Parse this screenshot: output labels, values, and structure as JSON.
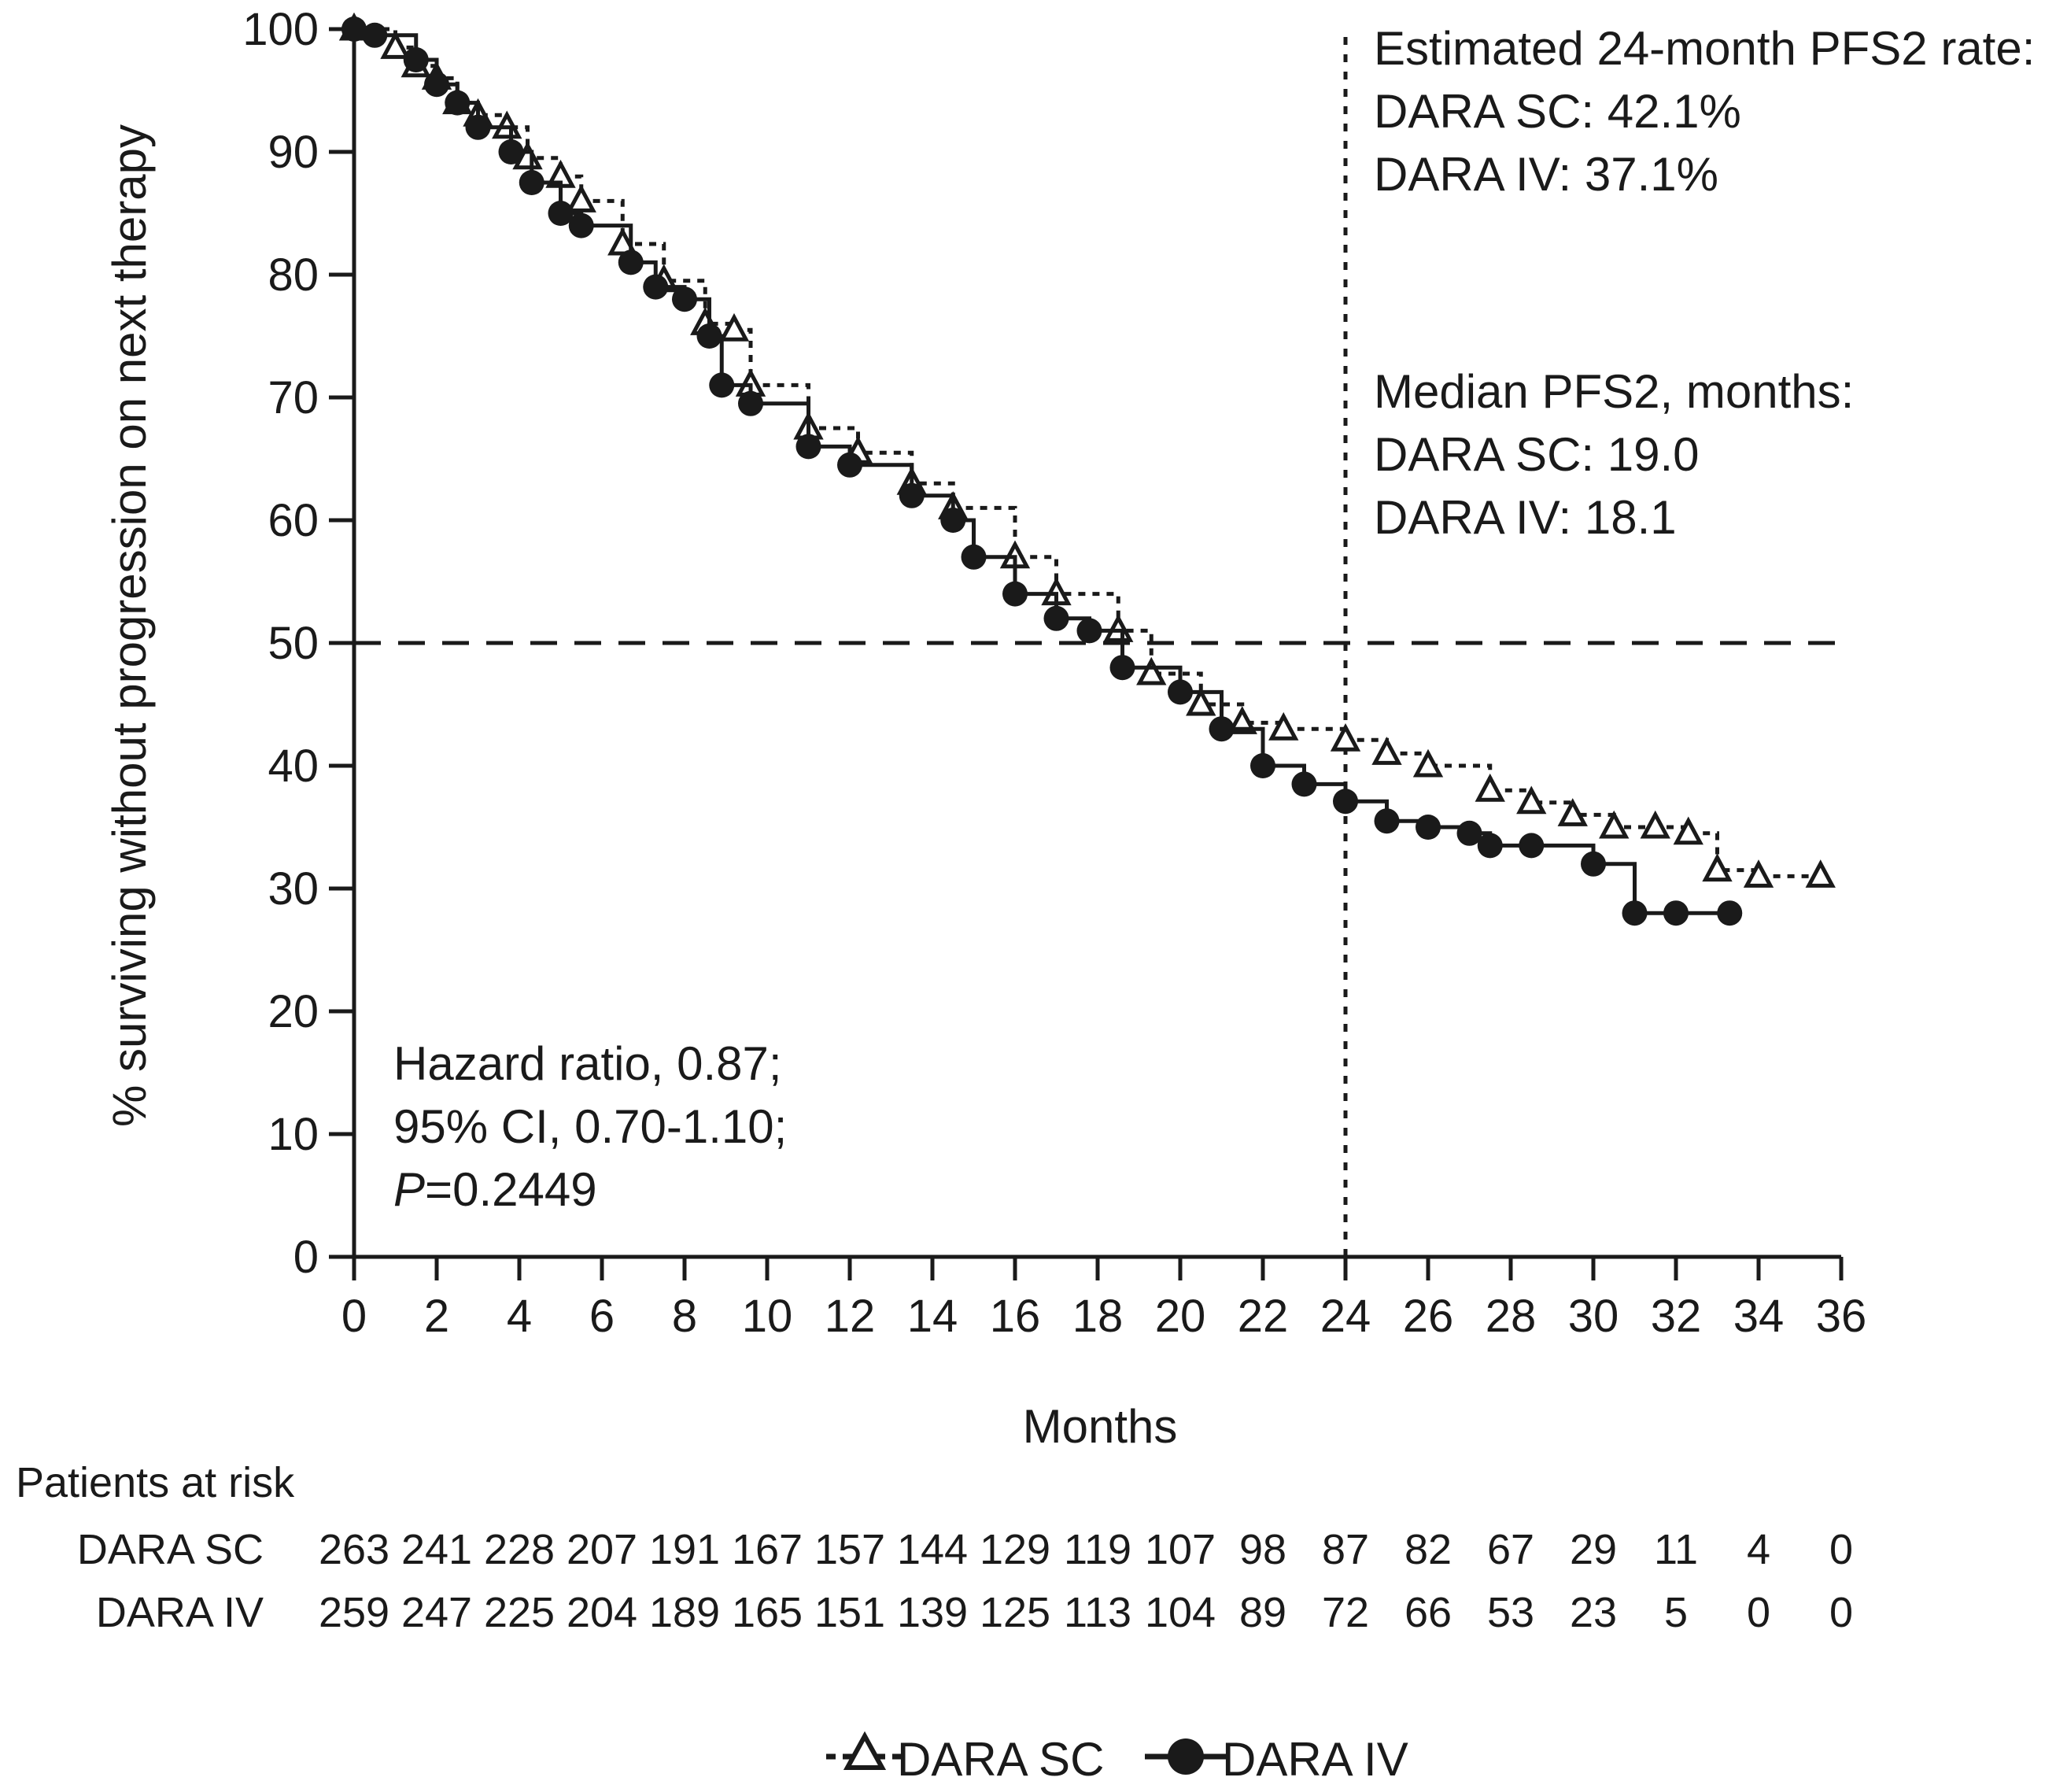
{
  "chart_data": {
    "type": "line",
    "subtype": "kaplan-meier",
    "xlabel": "Months",
    "ylabel": "% surviving without progression on next therapy",
    "xlim": [
      0,
      36
    ],
    "ylim": [
      0,
      100
    ],
    "xticks": [
      0,
      2,
      4,
      6,
      8,
      10,
      12,
      14,
      16,
      18,
      20,
      22,
      24,
      26,
      28,
      30,
      32,
      34,
      36
    ],
    "yticks": [
      0,
      10,
      20,
      30,
      40,
      50,
      60,
      70,
      80,
      90,
      100
    ],
    "grid": false,
    "reference_lines": {
      "horizontal_y": 50,
      "vertical_x": 24
    },
    "series": [
      {
        "name": "DARA SC",
        "marker": "triangle-open",
        "line_style": "dotted",
        "color": "#1a1a1a",
        "x": [
          0,
          1,
          1.5,
          2,
          2.5,
          3,
          3.7,
          4.2,
          5,
          5.5,
          6.5,
          7.5,
          8.5,
          9.2,
          9.6,
          11,
          12.2,
          13.5,
          14.5,
          16,
          17,
          18.5,
          19.3,
          20.5,
          21.5,
          22.5,
          24,
          25,
          26,
          27.5,
          28.5,
          29.5,
          30.5,
          31.5,
          32.3,
          33,
          34,
          35.5
        ],
        "y": [
          100,
          98.5,
          97,
          96,
          94,
          93,
          92,
          89.5,
          88,
          86,
          82.5,
          79.5,
          76,
          75.5,
          71,
          67.5,
          65.5,
          63,
          61,
          57,
          54,
          51,
          47.5,
          45,
          43.5,
          43,
          42.1,
          41,
          40,
          38,
          37,
          36,
          35,
          35,
          34.5,
          31.5,
          31,
          31
        ]
      },
      {
        "name": "DARA IV",
        "marker": "circle-filled",
        "line_style": "solid",
        "color": "#1a1a1a",
        "x": [
          0,
          0.5,
          1.5,
          2,
          2.5,
          3,
          3.8,
          4.3,
          5,
          5.5,
          6.7,
          7.3,
          8,
          8.6,
          8.9,
          9.6,
          11,
          12,
          13.5,
          14.5,
          15,
          16,
          17,
          17.8,
          18.6,
          20,
          21,
          22,
          23,
          24,
          25,
          26,
          27,
          27.5,
          28.5,
          30,
          31,
          32,
          33.3
        ],
        "y": [
          100,
          99.5,
          97.5,
          95.5,
          94,
          92,
          90,
          87.5,
          85,
          84,
          81,
          79,
          78,
          75,
          71,
          69.5,
          66,
          64.5,
          62,
          60,
          57,
          54,
          52,
          51,
          48,
          46,
          43,
          40,
          38.5,
          37.1,
          35.5,
          35,
          34.5,
          33.5,
          33.5,
          32,
          28,
          28,
          28
        ]
      }
    ],
    "annotations": {
      "pfs2_rate": [
        "Estimated 24-month PFS2 rate:",
        "DARA SC: 42.1%",
        "DARA IV: 37.1%"
      ],
      "median": [
        "Median PFS2, months:",
        "DARA SC: 19.0",
        "DARA IV: 18.1"
      ],
      "hazard": [
        "Hazard ratio, 0.87;",
        "95% CI, 0.70-1.10;"
      ],
      "p_value_italic": "P",
      "p_value_rest": "=0.2449"
    },
    "at_risk": {
      "title": "Patients at risk",
      "rows": [
        {
          "label": "DARA SC",
          "values": [
            "263",
            "241",
            "228",
            "207",
            "191",
            "167",
            "157",
            "144",
            "129",
            "119",
            "107",
            "98",
            "87",
            "82",
            "67",
            "29",
            "11",
            "4",
            "0"
          ]
        },
        {
          "label": "DARA IV",
          "values": [
            "259",
            "247",
            "225",
            "204",
            "189",
            "165",
            "151",
            "139",
            "125",
            "113",
            "104",
            "89",
            "72",
            "66",
            "53",
            "23",
            "5",
            "0",
            "0"
          ]
        }
      ]
    },
    "legend": {
      "position": "bottom-center",
      "items": [
        "DARA SC",
        "DARA IV"
      ]
    }
  }
}
